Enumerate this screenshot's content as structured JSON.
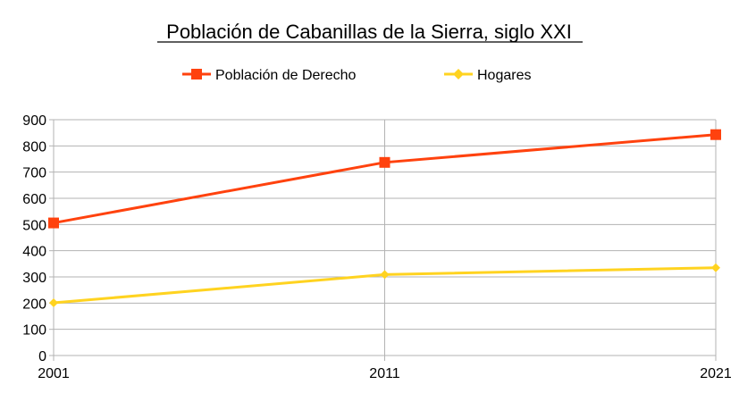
{
  "chart_data": {
    "type": "line",
    "title": "Población de Cabanillas de la Sierra, siglo XXI",
    "xlabel": "",
    "ylabel": "",
    "categories": [
      "2001",
      "2011",
      "2021"
    ],
    "ylim": [
      0,
      900
    ],
    "yticks": [
      "0",
      "100",
      "200",
      "300",
      "400",
      "500",
      "600",
      "700",
      "800",
      "900"
    ],
    "grid": true,
    "legend_position": "top",
    "series": [
      {
        "name": "Población de Derecho",
        "values": [
          506,
          737,
          843
        ],
        "color": "#ff420e",
        "marker": "square"
      },
      {
        "name": "Hogares",
        "values": [
          201,
          309,
          335
        ],
        "color": "#ffd320",
        "marker": "diamond"
      }
    ]
  }
}
